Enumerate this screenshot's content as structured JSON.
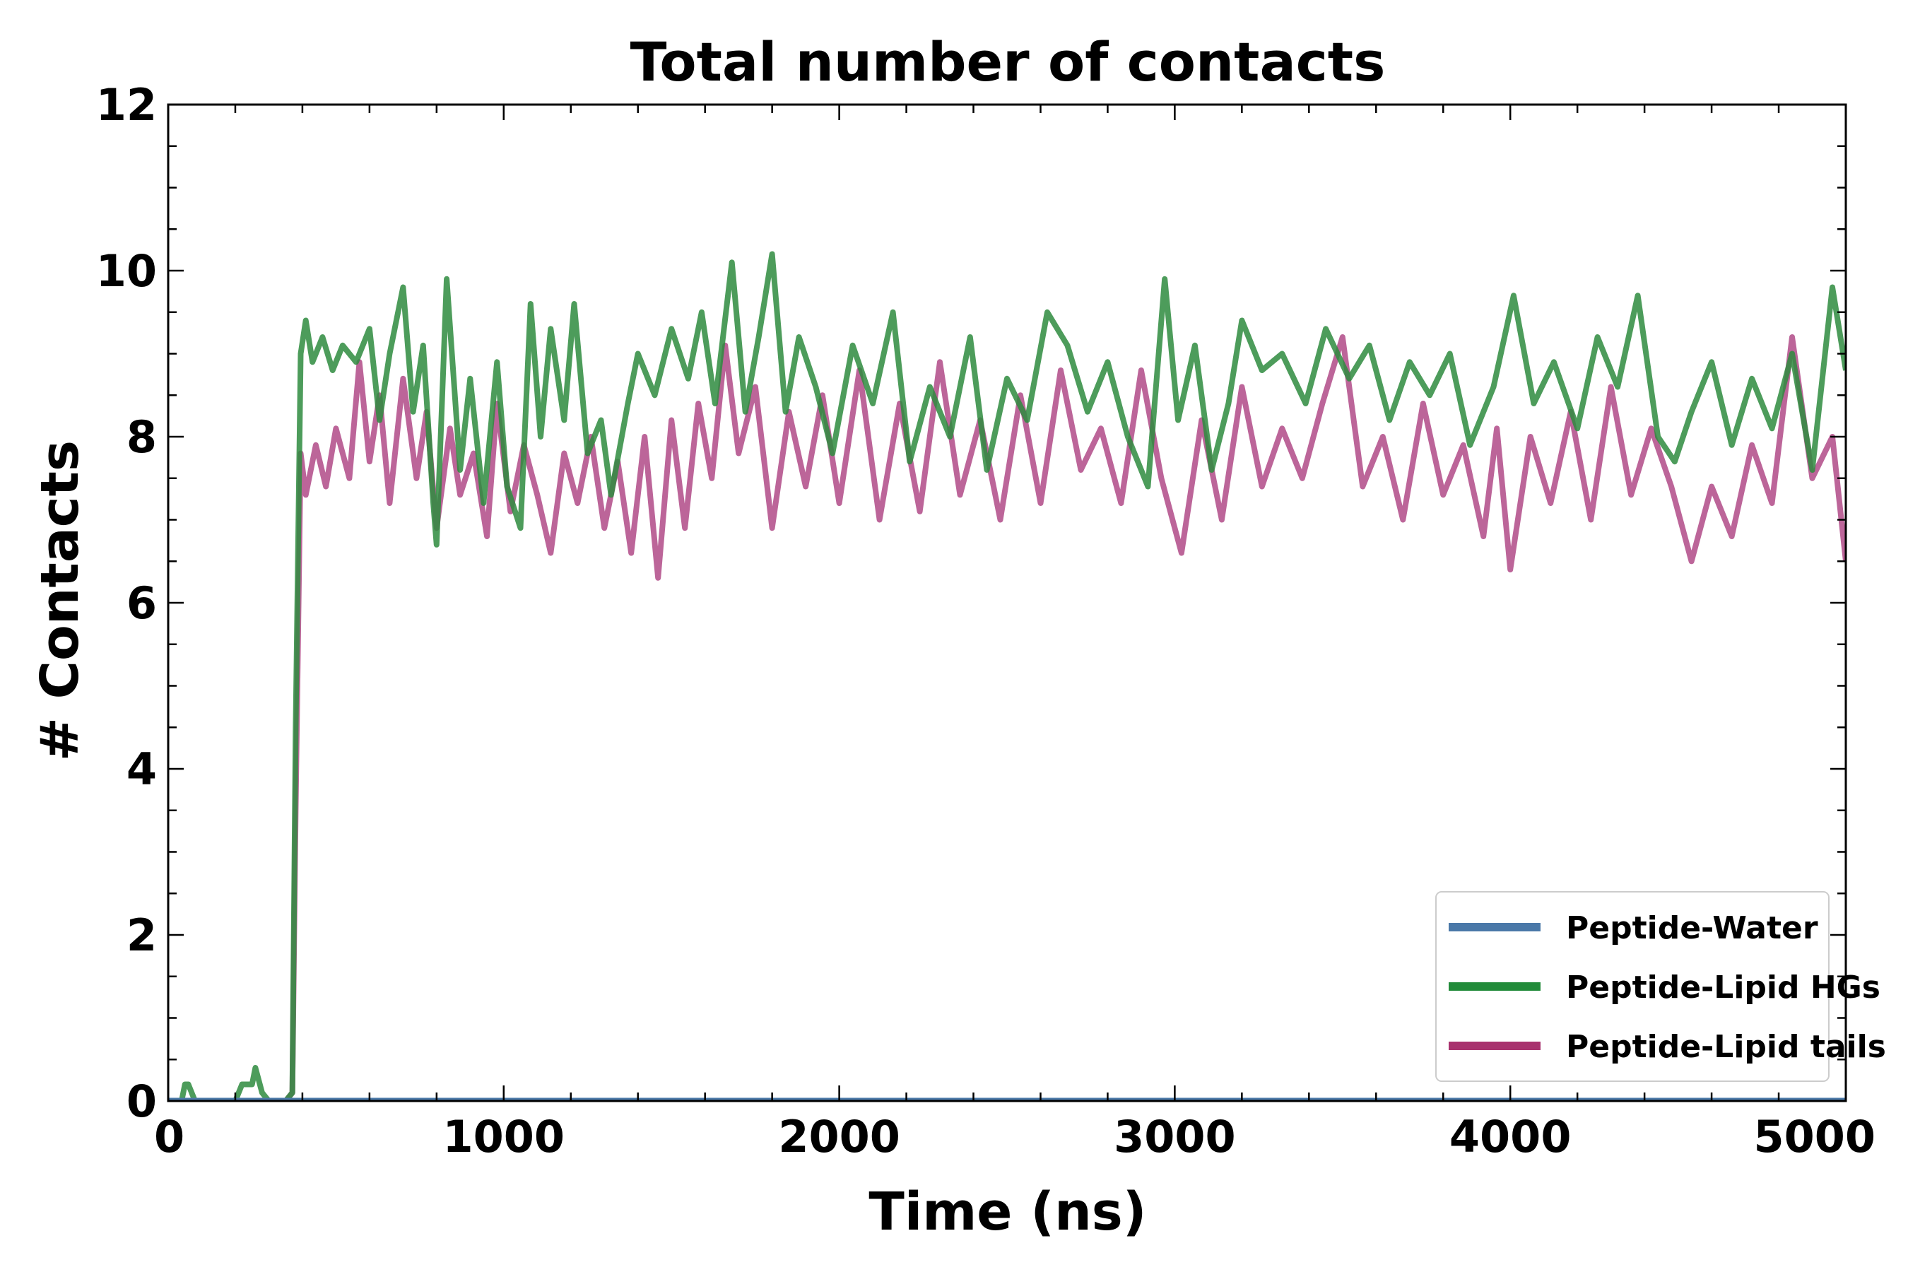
{
  "chart_data": {
    "type": "line",
    "title": "Total number of contacts",
    "xlabel": "Time (ns)",
    "ylabel": "# Contacts",
    "xlim": [
      0,
      5000
    ],
    "ylim": [
      0,
      12
    ],
    "xticks": [
      "0",
      "1000",
      "2000",
      "3000",
      "4000",
      "5000"
    ],
    "yticks": [
      "0",
      "2",
      "4",
      "6",
      "8",
      "10",
      "12"
    ],
    "grid": false,
    "legend_position": "bottom-right",
    "series": [
      {
        "name": "Peptide-Water",
        "color": "#4a78a8",
        "x": [
          0,
          5000
        ],
        "y": [
          0,
          0
        ]
      },
      {
        "name": "Peptide-Lipid HGs",
        "color": "#2e8b3e",
        "legend_color": "#228b3a",
        "x": [
          0,
          40,
          50,
          60,
          80,
          100,
          200,
          220,
          250,
          260,
          280,
          300,
          350,
          370,
          380,
          395,
          410,
          430,
          460,
          490,
          520,
          560,
          600,
          630,
          660,
          700,
          730,
          760,
          790,
          800,
          830,
          870,
          900,
          940,
          980,
          1010,
          1050,
          1080,
          1110,
          1140,
          1180,
          1210,
          1250,
          1290,
          1320,
          1370,
          1400,
          1450,
          1500,
          1550,
          1590,
          1630,
          1680,
          1720,
          1760,
          1800,
          1840,
          1880,
          1930,
          1980,
          2040,
          2100,
          2160,
          2210,
          2270,
          2330,
          2390,
          2440,
          2500,
          2560,
          2620,
          2680,
          2740,
          2800,
          2860,
          2920,
          2970,
          3010,
          3060,
          3110,
          3160,
          3200,
          3260,
          3320,
          3390,
          3450,
          3520,
          3580,
          3640,
          3700,
          3760,
          3820,
          3880,
          3950,
          4010,
          4070,
          4130,
          4200,
          4260,
          4320,
          4380,
          4440,
          4490,
          4540,
          4600,
          4660,
          4720,
          4780,
          4840,
          4900,
          4960,
          5000
        ],
        "y": [
          0,
          0,
          0.2,
          0.2,
          0,
          0,
          0,
          0.2,
          0.2,
          0.4,
          0.1,
          0,
          0,
          0.1,
          4.5,
          9.0,
          9.4,
          8.9,
          9.2,
          8.8,
          9.1,
          8.9,
          9.3,
          8.2,
          9.0,
          9.8,
          8.3,
          9.1,
          7.2,
          6.7,
          9.9,
          7.6,
          8.7,
          7.2,
          8.9,
          7.4,
          6.9,
          9.6,
          8.0,
          9.3,
          8.2,
          9.6,
          7.8,
          8.2,
          7.3,
          8.4,
          9.0,
          8.5,
          9.3,
          8.7,
          9.5,
          8.4,
          10.1,
          8.3,
          9.2,
          10.2,
          8.3,
          9.2,
          8.6,
          7.8,
          9.1,
          8.4,
          9.5,
          7.7,
          8.6,
          8.0,
          9.2,
          7.6,
          8.7,
          8.2,
          9.5,
          9.1,
          8.3,
          8.9,
          8.0,
          7.4,
          9.9,
          8.2,
          9.1,
          7.6,
          8.4,
          9.4,
          8.8,
          9.0,
          8.4,
          9.3,
          8.7,
          9.1,
          8.2,
          8.9,
          8.5,
          9.0,
          7.9,
          8.6,
          9.7,
          8.4,
          8.9,
          8.1,
          9.2,
          8.6,
          9.7,
          8.0,
          7.7,
          8.3,
          8.9,
          7.9,
          8.7,
          8.1,
          9.0,
          7.6,
          9.8,
          8.8
        ]
      },
      {
        "name": "Peptide-Lipid tails",
        "color": "#b04a87",
        "legend_color": "#a8326e",
        "x": [
          0,
          350,
          370,
          380,
          395,
          410,
          440,
          470,
          500,
          540,
          570,
          600,
          630,
          660,
          700,
          740,
          770,
          800,
          840,
          870,
          910,
          950,
          980,
          1020,
          1060,
          1100,
          1140,
          1180,
          1220,
          1260,
          1300,
          1340,
          1380,
          1420,
          1460,
          1500,
          1540,
          1580,
          1620,
          1660,
          1700,
          1750,
          1800,
          1850,
          1900,
          1950,
          2000,
          2060,
          2120,
          2180,
          2240,
          2300,
          2360,
          2420,
          2480,
          2540,
          2600,
          2660,
          2720,
          2780,
          2840,
          2900,
          2960,
          3020,
          3080,
          3140,
          3200,
          3260,
          3320,
          3380,
          3440,
          3500,
          3560,
          3620,
          3680,
          3740,
          3800,
          3860,
          3920,
          3960,
          4000,
          4060,
          4120,
          4180,
          4240,
          4300,
          4360,
          4420,
          4480,
          4540,
          4600,
          4660,
          4720,
          4780,
          4840,
          4900,
          4960,
          5000
        ],
        "y": [
          0,
          0,
          0.1,
          3.5,
          7.8,
          7.3,
          7.9,
          7.4,
          8.1,
          7.5,
          8.9,
          7.7,
          8.5,
          7.2,
          8.7,
          7.5,
          8.3,
          6.9,
          8.1,
          7.3,
          7.8,
          6.8,
          8.4,
          7.1,
          7.9,
          7.3,
          6.6,
          7.8,
          7.2,
          8.0,
          6.9,
          7.7,
          6.6,
          8.0,
          6.3,
          8.2,
          6.9,
          8.4,
          7.5,
          9.1,
          7.8,
          8.6,
          6.9,
          8.3,
          7.4,
          8.5,
          7.2,
          8.8,
          7.0,
          8.4,
          7.1,
          8.9,
          7.3,
          8.2,
          7.0,
          8.5,
          7.2,
          8.8,
          7.6,
          8.1,
          7.2,
          8.8,
          7.5,
          6.6,
          8.2,
          7.0,
          8.6,
          7.4,
          8.1,
          7.5,
          8.4,
          9.2,
          7.4,
          8.0,
          7.0,
          8.4,
          7.3,
          7.9,
          6.8,
          8.1,
          6.4,
          8.0,
          7.2,
          8.3,
          7.0,
          8.6,
          7.3,
          8.1,
          7.4,
          6.5,
          7.4,
          6.8,
          7.9,
          7.2,
          9.2,
          7.5,
          8.0,
          6.5
        ]
      }
    ]
  }
}
